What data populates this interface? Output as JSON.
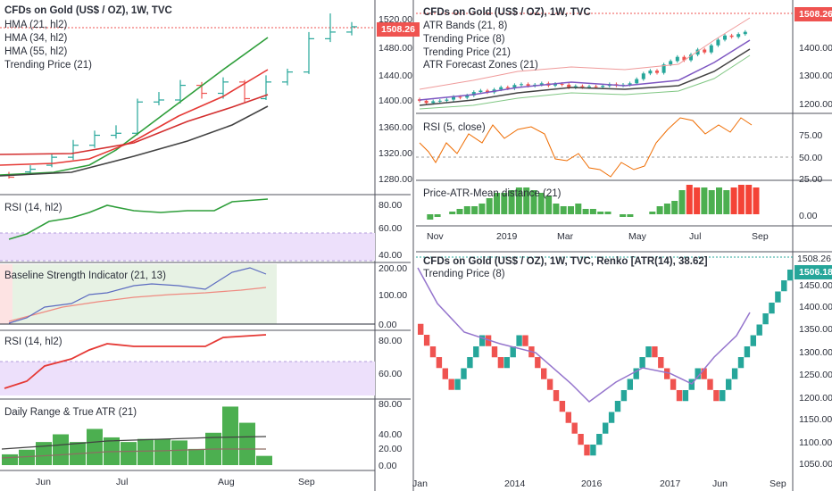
{
  "colors": {
    "up": "#26a69a",
    "down": "#ef5350",
    "hma21": "#2e9e3a",
    "hma34": "#e53935",
    "hma55": "#424242",
    "trend21": "#d32f2f",
    "rsi_fill": "#ede0fb",
    "baseline_fill": "#e7f2e4",
    "bar_green": "#4caf50",
    "bar_red": "#f44336",
    "renko_up": "#26a69a",
    "renko_down": "#ef5350",
    "trend8": "#9575cd",
    "price_tag": "#ef5350",
    "price_tag2": "#26a69a"
  },
  "left": {
    "main": {
      "title": "CFDs on Gold (US$ / OZ), 1W, TVC",
      "legend": [
        "HMA (21, hl2)",
        "HMA (34, hl2)",
        "HMA (55, hl2)",
        "Trending Price (21)"
      ],
      "price_tag": "1508.26",
      "yticks": [
        "1520.00",
        "1480.00",
        "1440.00",
        "1400.00",
        "1360.00",
        "1320.00",
        "1280.00"
      ]
    },
    "rsi1": {
      "title": "RSI (14, hl2)",
      "yticks": [
        "80.00",
        "60.00",
        "40.00"
      ]
    },
    "baseline": {
      "title": "Baseline Strength Indicator (21, 13)",
      "yticks": [
        "200.00",
        "100.00",
        "0.00"
      ]
    },
    "rsi2": {
      "title": "RSI (14, hl2)",
      "yticks": [
        "80.00",
        "60.00"
      ]
    },
    "daily": {
      "title": "Daily Range & True ATR (21)",
      "yticks": [
        "80.00",
        "40.00",
        "20.00",
        "0.00"
      ]
    },
    "xaxis": [
      "Jun",
      "Jul",
      "Aug",
      "Sep"
    ]
  },
  "right_top": {
    "main": {
      "title": "CFDs on Gold (US$ / OZ), 1W, TVC",
      "legend": [
        "ATR Bands (21, 8)",
        "Trending Price (8)",
        "Trending Price (21)",
        "ATR Forecast Zones (21)"
      ],
      "price_tag": "1508.26",
      "yticks": [
        "1400.00",
        "1300.00",
        "1200.00"
      ]
    },
    "rsi": {
      "title": "RSI (5, close)",
      "yticks": [
        "75.00",
        "50.00",
        "25.00"
      ]
    },
    "dist": {
      "title": "Price-ATR-Mean distance (21)",
      "yticks": [
        "0.00"
      ]
    },
    "xaxis": [
      "Nov",
      "2019",
      "Mar",
      "May",
      "Jul",
      "Sep"
    ]
  },
  "right_bottom": {
    "title": "CFDs on Gold (US$ / OZ), 1W, TVC, Renko [ATR(14), 38.62]",
    "legend": [
      "Trending Price (8)"
    ],
    "price_tag": "1506.18",
    "price_label_top": "1508.26",
    "yticks": [
      "1450.00",
      "1400.00",
      "1350.00",
      "1300.00",
      "1250.00",
      "1200.00",
      "1150.00",
      "1100.00",
      "1050.00"
    ],
    "xaxis": [
      "Jan",
      "2014",
      "2016",
      "2017",
      "Jun",
      "Sep"
    ]
  }
}
